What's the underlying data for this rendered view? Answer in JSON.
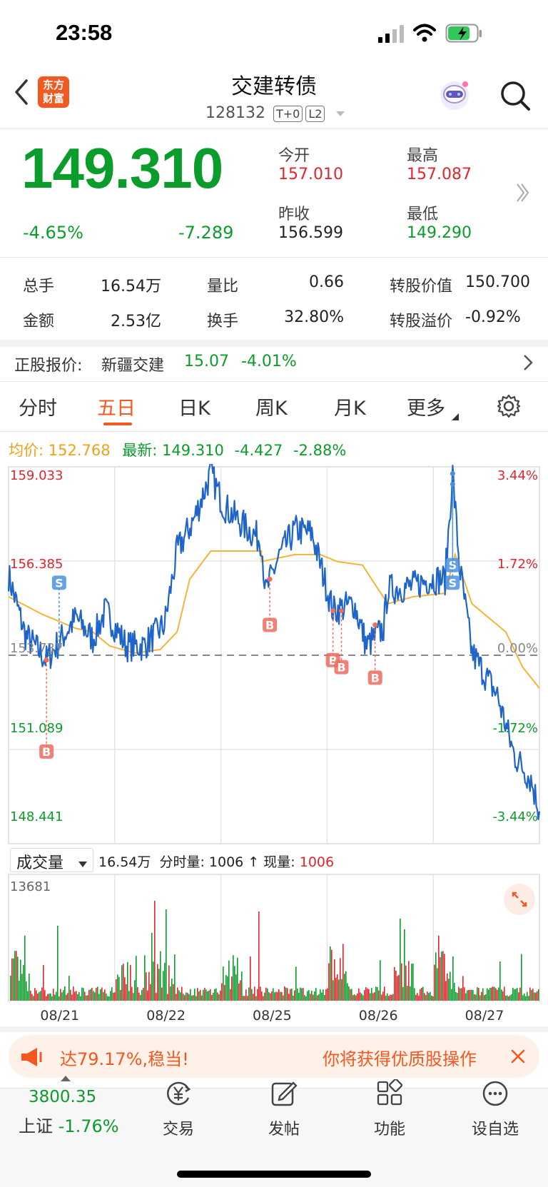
{
  "status_bar": {
    "time": "23:58"
  },
  "header": {
    "title": "交建转债",
    "code": "128132",
    "tag_t0": "T+0",
    "tag_l2": "L2",
    "logo_text_line1": "东方",
    "logo_text_line2": "财富"
  },
  "quote": {
    "price": "149.310",
    "change_pct": "-4.65%",
    "change": "-7.289",
    "open_label": "今开",
    "open": "157.010",
    "high_label": "最高",
    "high": "157.087",
    "prev_close_label": "昨收",
    "prev_close": "156.599",
    "low_label": "最低",
    "low": "149.290"
  },
  "stats": {
    "volume_label": "总手",
    "volume": "16.54万",
    "ratio_label": "量比",
    "ratio": "0.66",
    "conv_value_label": "转股价值",
    "conv_value": "150.700",
    "amount_label": "金额",
    "amount": "2.53亿",
    "turnover_label": "换手",
    "turnover": "32.80%",
    "premium_label": "转股溢价",
    "premium": "-0.92%"
  },
  "underlying": {
    "label": "正股报价:",
    "name": "新疆交建",
    "price": "15.07",
    "change_pct": "-4.01%"
  },
  "tabs": [
    "分时",
    "五日",
    "日K",
    "周K",
    "月K",
    "更多"
  ],
  "active_tab": "五日",
  "chart_legend": {
    "avg_label": "均价:",
    "avg": "152.768",
    "latest_label": "最新:",
    "latest": "149.310",
    "latest_change": "-4.427",
    "latest_pct": "-2.88%"
  },
  "chart_data": {
    "type": "line",
    "y_left_ticks": [
      "159.033",
      "156.385",
      "153.737",
      "151.089",
      "148.441"
    ],
    "y_right_ticks": [
      "3.44%",
      "1.72%",
      "0.00%",
      "-1.72%",
      "-3.44%"
    ],
    "ylim": [
      148.441,
      159.033
    ],
    "baseline": 153.737,
    "x_labels": [
      "08/21",
      "08/22",
      "08/25",
      "08/26",
      "08/27"
    ],
    "price_series_anchors": [
      [
        0,
        156.0
      ],
      [
        0.2,
        154.3
      ],
      [
        0.45,
        153.6
      ],
      [
        0.8,
        154.8
      ],
      [
        1.0,
        154.2
      ],
      [
        1.15,
        155.0
      ],
      [
        1.4,
        154.0
      ],
      [
        1.6,
        154.0
      ],
      [
        1.85,
        154.6
      ],
      [
        2.0,
        156.7
      ],
      [
        2.2,
        157.6
      ],
      [
        2.4,
        158.9
      ],
      [
        2.55,
        158.0
      ],
      [
        2.8,
        157.4
      ],
      [
        3.0,
        157.0
      ],
      [
        3.05,
        155.5
      ],
      [
        3.2,
        156.5
      ],
      [
        3.4,
        157.3
      ],
      [
        3.6,
        157.2
      ],
      [
        3.85,
        155.0
      ],
      [
        4.1,
        155.2
      ],
      [
        4.25,
        154.0
      ],
      [
        4.45,
        154.5
      ],
      [
        4.5,
        155.6
      ],
      [
        4.8,
        155.7
      ],
      [
        5.0,
        155.9
      ],
      [
        5.18,
        155.9
      ],
      [
        5.27,
        158.9
      ],
      [
        5.35,
        156.3
      ],
      [
        5.5,
        153.8
      ],
      [
        5.8,
        152.6
      ],
      [
        6.0,
        150.9
      ],
      [
        6.2,
        150.2
      ],
      [
        6.3,
        149.3
      ]
    ],
    "avg_series_anchors": [
      [
        0,
        155.4
      ],
      [
        0.4,
        154.9
      ],
      [
        0.8,
        154.5
      ],
      [
        1.0,
        154.4
      ],
      [
        1.2,
        154.0
      ],
      [
        1.5,
        153.8
      ],
      [
        1.8,
        153.9
      ],
      [
        2.0,
        154.4
      ],
      [
        2.15,
        155.9
      ],
      [
        2.4,
        156.7
      ],
      [
        2.7,
        156.7
      ],
      [
        3.0,
        156.7
      ],
      [
        3.0,
        156.4
      ],
      [
        3.4,
        156.6
      ],
      [
        3.7,
        156.6
      ],
      [
        3.9,
        156.4
      ],
      [
        4.2,
        156.3
      ],
      [
        4.5,
        155.2
      ],
      [
        4.8,
        155.4
      ],
      [
        5.18,
        155.5
      ],
      [
        5.3,
        156.6
      ],
      [
        5.5,
        155.2
      ],
      [
        5.9,
        154.4
      ],
      [
        6.1,
        153.4
      ],
      [
        6.3,
        152.8
      ]
    ],
    "volume_max": "13681"
  },
  "volume_panel": {
    "selector": "成交量",
    "total": "16.54万",
    "tick_label": "分时量:",
    "tick_value": "1006",
    "arrow": "↑",
    "now_label": "现量:",
    "now_value": "1006"
  },
  "banner": {
    "text_left": "达79.17%,稳当!",
    "text_right": "你将获得优质股操作"
  },
  "footer": {
    "index_value": "3800.35",
    "index_name": "上证",
    "index_change": "-1.76%",
    "items": [
      "交易",
      "发帖",
      "功能",
      "设自选"
    ]
  },
  "colors": {
    "up": "#e0262c",
    "down": "#0a9d2b",
    "avg": "#f0a019",
    "line": "#1f64c8"
  }
}
